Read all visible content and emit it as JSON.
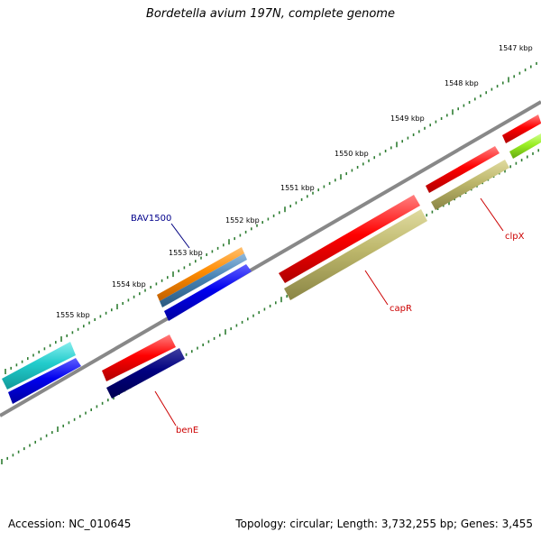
{
  "title": "Bordetella avium 197N, complete genome",
  "footer": {
    "accession": "Accession: NC_010645",
    "summary": "Topology: circular; Length: 3,732,255 bp; Genes: 3,455"
  },
  "ruler_labels": [
    "1547 kbp",
    "1548 kbp",
    "1549 kbp",
    "1550 kbp",
    "1551 kbp",
    "1552 kbp",
    "1553 kbp",
    "1554 kbp",
    "1555 kbp"
  ],
  "gene_labels": [
    {
      "name": "BAV1500",
      "color": "#00008b"
    },
    {
      "name": "clpX",
      "color": "#cc0000"
    },
    {
      "name": "capR",
      "color": "#cc0000"
    },
    {
      "name": "benE",
      "color": "#cc0000"
    }
  ],
  "colors": {
    "backbone": "#808080",
    "tick": "#2e7d32",
    "red_feature": "#ff0000",
    "khaki_feature": "#bdb76b",
    "blue_feature": "#0000ee",
    "navy_feature": "#000080",
    "cyan_feature": "#22cccc",
    "orange_feature": "#ff8c00",
    "steel_feature": "#4682b4",
    "lime_feature": "#99ee22"
  }
}
